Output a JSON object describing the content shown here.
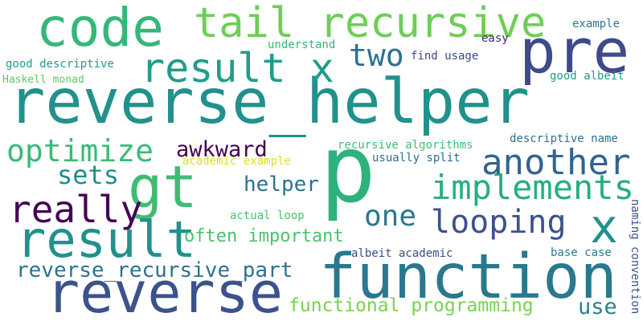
{
  "words": [
    {
      "text": "reverse_helper",
      "color": "#21918c"
    },
    {
      "text": "p",
      "color": "#2db27d"
    },
    {
      "text": "function",
      "color": "#2a788e"
    },
    {
      "text": "reverse",
      "color": "#3b528b"
    },
    {
      "text": "code",
      "color": "#35b779"
    },
    {
      "text": "tail recursive",
      "color": "#6ece58"
    },
    {
      "text": "gt",
      "color": "#3fbc73"
    },
    {
      "text": "result",
      "color": "#21918c"
    },
    {
      "text": "result x",
      "color": "#1f9e89"
    },
    {
      "text": "pre",
      "color": "#3e4a89"
    },
    {
      "text": "x",
      "color": "#21918c"
    },
    {
      "text": "implements",
      "color": "#28ae80"
    },
    {
      "text": "another",
      "color": "#33638d"
    },
    {
      "text": "looping",
      "color": "#3b528b"
    },
    {
      "text": "optimize",
      "color": "#3aba76"
    },
    {
      "text": "really",
      "color": "#440154"
    },
    {
      "text": "two",
      "color": "#2c728e"
    },
    {
      "text": "one",
      "color": "#2a788e"
    },
    {
      "text": "sets",
      "color": "#228d8d"
    },
    {
      "text": "awkward",
      "color": "#440154"
    },
    {
      "text": "reverse_recursive_part",
      "color": "#2d718e"
    },
    {
      "text": "helper",
      "color": "#2c718e"
    },
    {
      "text": "often important",
      "color": "#4ac16d"
    },
    {
      "text": "functional programming",
      "color": "#7ad151"
    },
    {
      "text": "use",
      "color": "#25838e"
    },
    {
      "text": "recursive algorithms",
      "color": "#3fbc73"
    },
    {
      "text": "descriptive name",
      "color": "#2c718e"
    },
    {
      "text": "usually split",
      "color": "#31688e"
    },
    {
      "text": "academic example",
      "color": "#d8e219"
    },
    {
      "text": "good descriptive",
      "color": "#1f9e89"
    },
    {
      "text": "Haskell monad",
      "color": "#5ec962"
    },
    {
      "text": "understand",
      "color": "#35b779"
    },
    {
      "text": "find usage",
      "color": "#3e4a89"
    },
    {
      "text": "easy",
      "color": "#482878"
    },
    {
      "text": "example",
      "color": "#2a788e"
    },
    {
      "text": "good albeit",
      "color": "#1f9e89"
    },
    {
      "text": "actual loop",
      "color": "#4ac16d"
    },
    {
      "text": "albeit academic",
      "color": "#3e4a89"
    },
    {
      "text": "base case",
      "color": "#2a788e"
    },
    {
      "text": "naming convention",
      "color": "#3b528b"
    }
  ]
}
